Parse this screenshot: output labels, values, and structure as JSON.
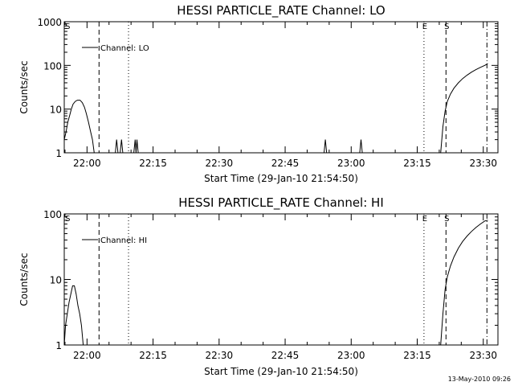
{
  "chart_data": [
    {
      "type": "line",
      "title": "HESSI PARTICLE_RATE Channel: LO",
      "xlabel": "Start Time (29-Jan-10 21:54:50)",
      "ylabel": "Counts/sec",
      "yscale": "log",
      "ylim": [
        1,
        1000
      ],
      "yticks": [
        {
          "v": 1,
          "l": "1"
        },
        {
          "v": 10,
          "l": "10"
        },
        {
          "v": 100,
          "l": "100"
        },
        {
          "v": 1000,
          "l": "1000"
        }
      ],
      "xlim_min": [
        0,
        98.5
      ],
      "xticks": [
        {
          "v": 5.17,
          "l": "22:00"
        },
        {
          "v": 20.17,
          "l": "22:15"
        },
        {
          "v": 35.17,
          "l": "22:30"
        },
        {
          "v": 50.17,
          "l": "22:45"
        },
        {
          "v": 65.17,
          "l": "23:00"
        },
        {
          "v": 80.17,
          "l": "23:15"
        },
        {
          "v": 95.17,
          "l": "23:30"
        }
      ],
      "legend": "Channel: LO",
      "markers": [
        {
          "x": 0.6,
          "label": "S",
          "style": "none"
        },
        {
          "x": 7.9,
          "label": "",
          "style": "dashed"
        },
        {
          "x": 14.6,
          "label": "",
          "style": "dotted"
        },
        {
          "x": 81.7,
          "label": "E",
          "style": "dotted"
        },
        {
          "x": 86.7,
          "label": "S",
          "style": "dashed"
        },
        {
          "x": 96.0,
          "label": "",
          "style": "dashdot"
        }
      ],
      "series": [
        {
          "points": [
            [
              0,
              2
            ],
            [
              0.4,
              3
            ],
            [
              0.8,
              5
            ],
            [
              1.2,
              7
            ],
            [
              1.6,
              10
            ],
            [
              2.0,
              13
            ],
            [
              2.5,
              15
            ],
            [
              3.0,
              16
            ],
            [
              3.6,
              16
            ],
            [
              4.1,
              14
            ],
            [
              4.6,
              11
            ],
            [
              5.0,
              8
            ],
            [
              5.5,
              5
            ],
            [
              6.0,
              3
            ],
            [
              6.4,
              2
            ],
            [
              6.8,
              1
            ]
          ]
        },
        {
          "points": [
            [
              11.6,
              1
            ],
            [
              11.9,
              2
            ],
            [
              12.2,
              1
            ]
          ]
        },
        {
          "points": [
            [
              12.7,
              1
            ],
            [
              13.0,
              2
            ],
            [
              13.3,
              1
            ]
          ]
        },
        {
          "points": [
            [
              15.8,
              1
            ],
            [
              16.1,
              2
            ],
            [
              16.3,
              1
            ],
            [
              16.5,
              2
            ],
            [
              16.8,
              1
            ]
          ]
        },
        {
          "points": [
            [
              59.0,
              1
            ],
            [
              59.3,
              2
            ],
            [
              59.6,
              1
            ]
          ]
        },
        {
          "points": [
            [
              67.1,
              1
            ],
            [
              67.4,
              2
            ],
            [
              67.7,
              1
            ]
          ]
        },
        {
          "points": [
            [
              85.5,
              1
            ],
            [
              86.0,
              4
            ],
            [
              86.5,
              9
            ],
            [
              87.0,
              15
            ],
            [
              87.7,
              22
            ],
            [
              88.5,
              30
            ],
            [
              89.5,
              40
            ],
            [
              90.5,
              50
            ],
            [
              91.5,
              60
            ],
            [
              92.5,
              70
            ],
            [
              93.5,
              80
            ],
            [
              94.5,
              90
            ],
            [
              95.5,
              100
            ],
            [
              96.2,
              110
            ]
          ]
        }
      ]
    },
    {
      "type": "line",
      "title": "HESSI PARTICLE_RATE Channel: HI",
      "xlabel": "Start Time (29-Jan-10 21:54:50)",
      "ylabel": "Counts/sec",
      "yscale": "log",
      "ylim": [
        1,
        100
      ],
      "yticks": [
        {
          "v": 1,
          "l": "1"
        },
        {
          "v": 10,
          "l": "10"
        },
        {
          "v": 100,
          "l": "100"
        }
      ],
      "xlim_min": [
        0,
        98.5
      ],
      "xticks": [
        {
          "v": 5.17,
          "l": "22:00"
        },
        {
          "v": 20.17,
          "l": "22:15"
        },
        {
          "v": 35.17,
          "l": "22:30"
        },
        {
          "v": 50.17,
          "l": "22:45"
        },
        {
          "v": 65.17,
          "l": "23:00"
        },
        {
          "v": 80.17,
          "l": "23:15"
        },
        {
          "v": 95.17,
          "l": "23:30"
        }
      ],
      "legend": "Channel: HI",
      "markers": [
        {
          "x": 0.6,
          "label": "S",
          "style": "none"
        },
        {
          "x": 7.9,
          "label": "",
          "style": "dashed"
        },
        {
          "x": 14.6,
          "label": "",
          "style": "dotted"
        },
        {
          "x": 81.7,
          "label": "E",
          "style": "dotted"
        },
        {
          "x": 86.7,
          "label": "S",
          "style": "dashed"
        },
        {
          "x": 96.0,
          "label": "",
          "style": "dashdot"
        }
      ],
      "series": [
        {
          "points": [
            [
              0,
              1
            ],
            [
              0.3,
              2
            ],
            [
              0.7,
              3
            ],
            [
              1.1,
              4.5
            ],
            [
              1.5,
              6
            ],
            [
              1.9,
              8
            ],
            [
              2.3,
              8
            ],
            [
              2.7,
              6
            ],
            [
              3.1,
              4
            ],
            [
              3.5,
              3
            ],
            [
              3.9,
              2
            ],
            [
              4.3,
              1
            ]
          ]
        },
        {
          "points": [
            [
              85.5,
              1
            ],
            [
              86.0,
              3
            ],
            [
              86.5,
              7
            ],
            [
              87.0,
              11
            ],
            [
              87.7,
              16
            ],
            [
              88.5,
              22
            ],
            [
              89.5,
              30
            ],
            [
              90.5,
              38
            ],
            [
              91.5,
              46
            ],
            [
              92.5,
              54
            ],
            [
              93.5,
              62
            ],
            [
              94.5,
              70
            ],
            [
              95.5,
              78
            ],
            [
              96.2,
              80
            ]
          ]
        }
      ]
    }
  ],
  "footer": "13-May-2010 09:26"
}
